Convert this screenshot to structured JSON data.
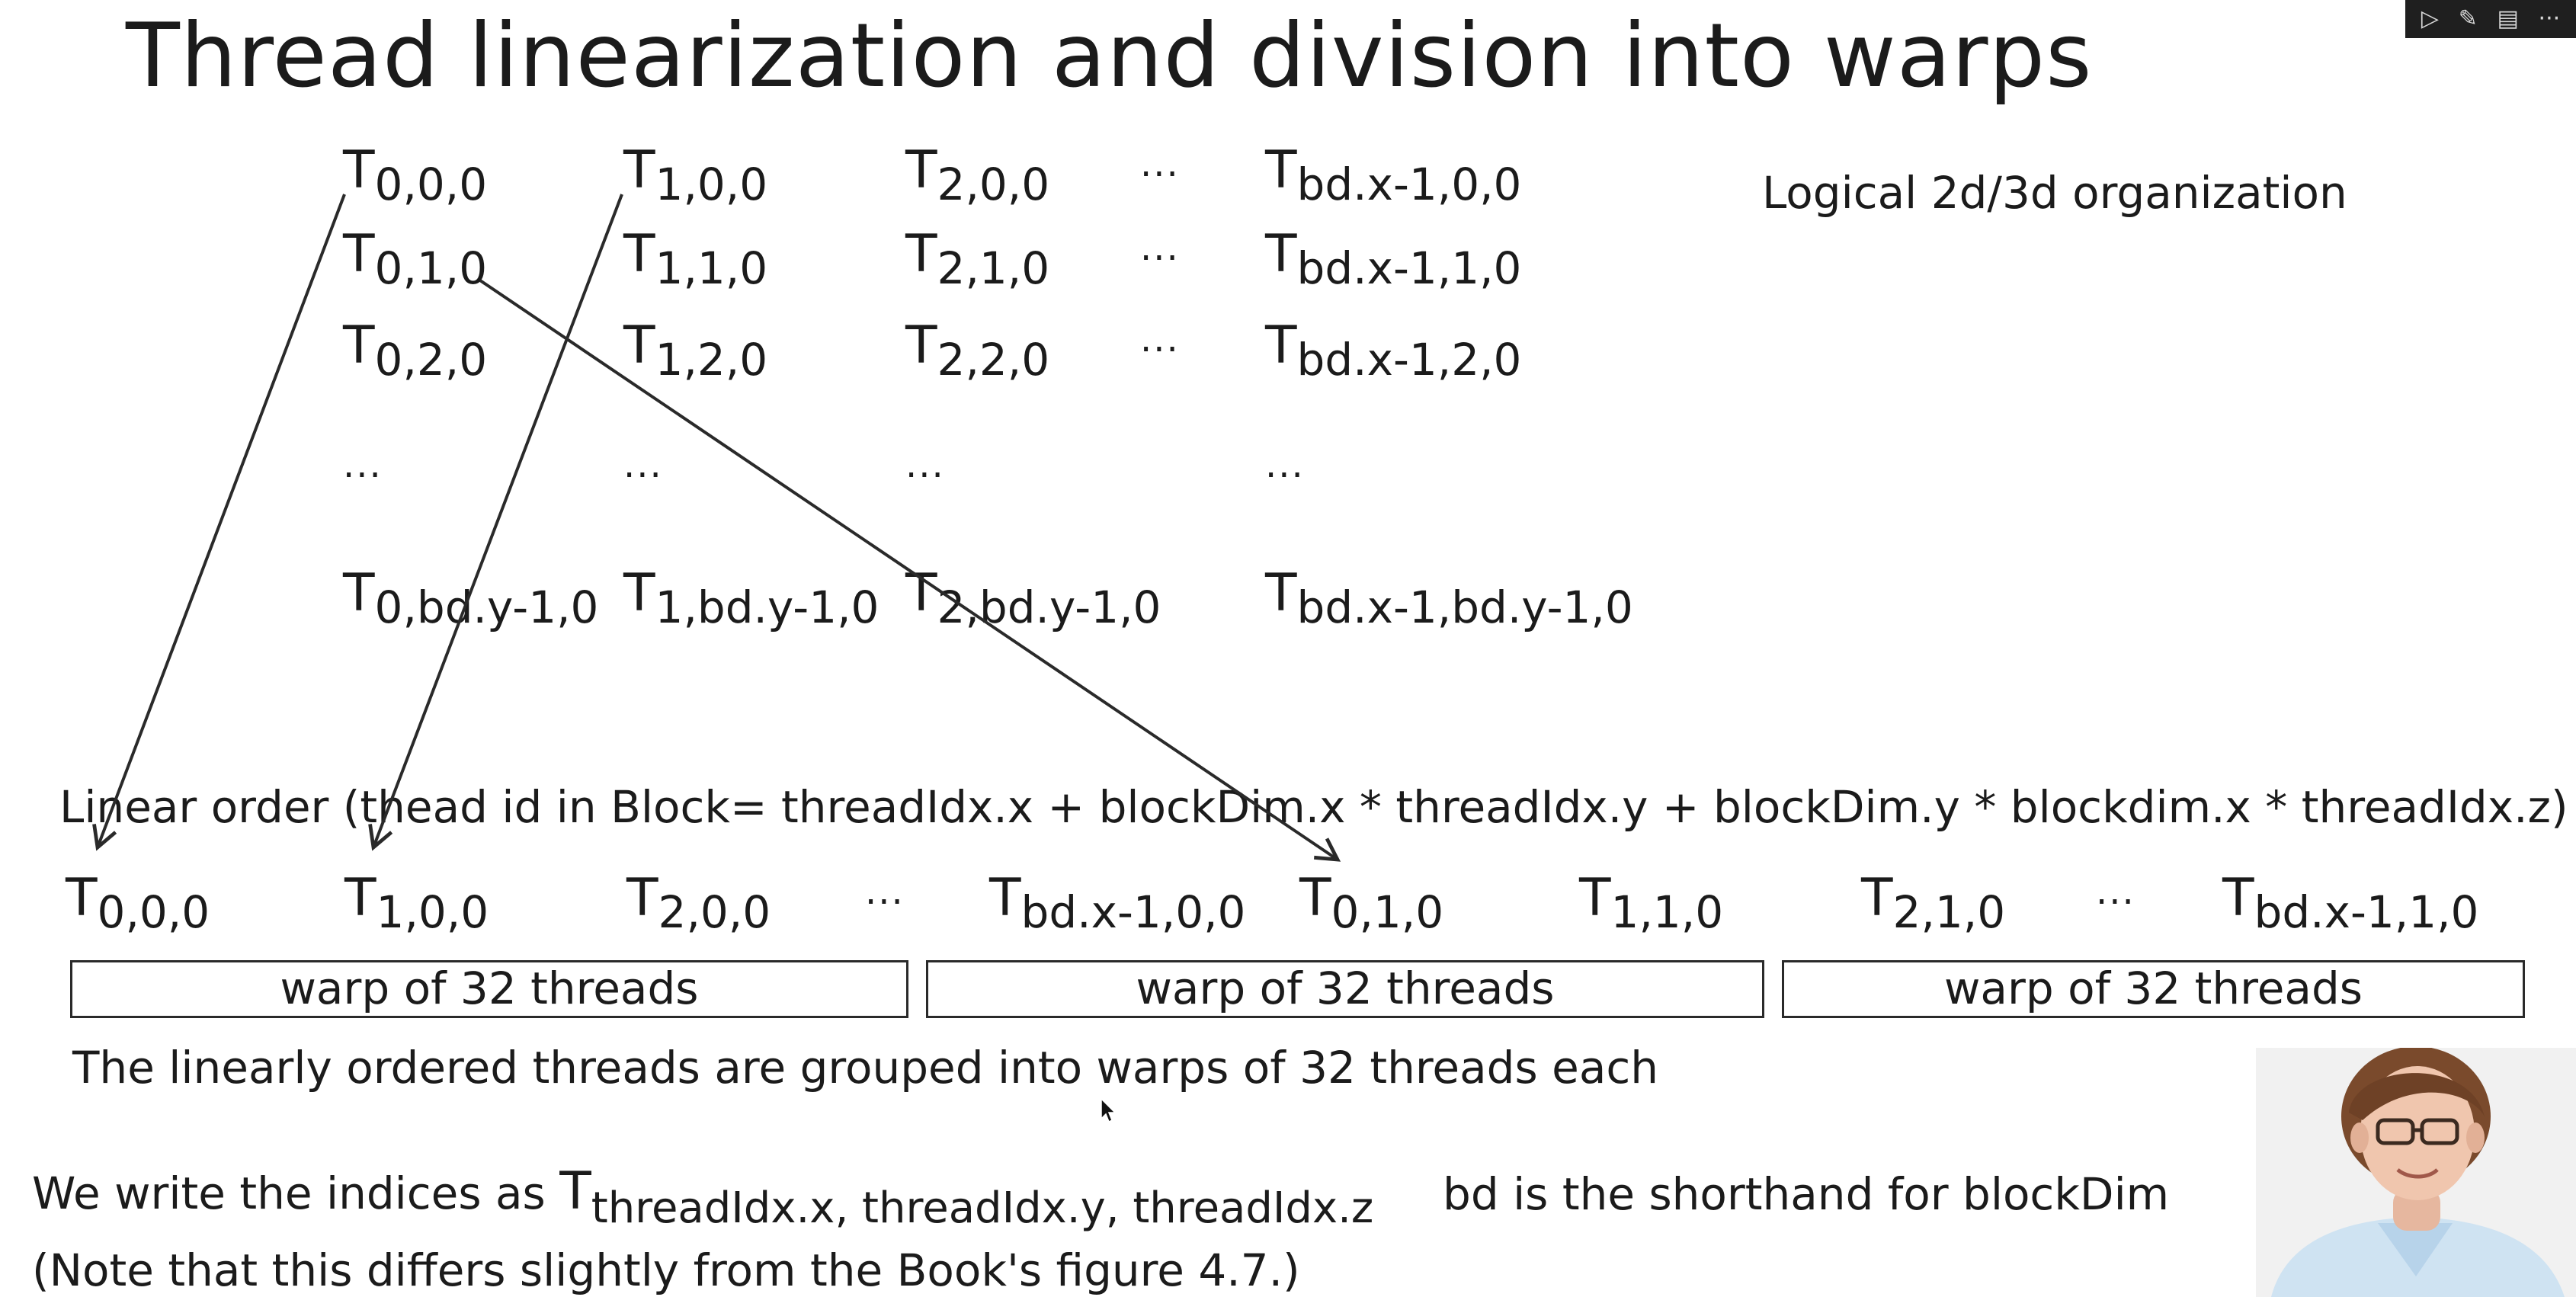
{
  "slide": {
    "title": "Thread linearization and division into warps",
    "logical_label": "Logical 2d/3d organization",
    "grid": {
      "row0": [
        {
          "base": "T",
          "sub": "0,0,0"
        },
        {
          "base": "T",
          "sub": "1,0,0"
        },
        {
          "base": "T",
          "sub": "2,0,0"
        },
        {
          "base": "T",
          "sub": "bd.x-1,0,0"
        }
      ],
      "row1": [
        {
          "base": "T",
          "sub": "0,1,0"
        },
        {
          "base": "T",
          "sub": "1,1,0"
        },
        {
          "base": "T",
          "sub": "2,1,0"
        },
        {
          "base": "T",
          "sub": "bd.x-1,1,0"
        }
      ],
      "row2": [
        {
          "base": "T",
          "sub": "0,2,0"
        },
        {
          "base": "T",
          "sub": "1,2,0"
        },
        {
          "base": "T",
          "sub": "2,2,0"
        },
        {
          "base": "T",
          "sub": "bd.x-1,2,0"
        }
      ],
      "rowlast": [
        {
          "base": "T",
          "sub": "0,bd.y-1,0"
        },
        {
          "base": "T",
          "sub": "1,bd.y-1,0"
        },
        {
          "base": "T",
          "sub": "2,bd.y-1,0"
        },
        {
          "base": "T",
          "sub": "bd.x-1,bd.y-1,0"
        }
      ],
      "ellipsis": "···"
    },
    "linear_label": "Linear order (thead id in Block= threadIdx.x + blockDim.x * threadIdx.y + blockDim.y * blockdim.x * threadIdx.z)",
    "linear": [
      {
        "base": "T",
        "sub": "0,0,0"
      },
      {
        "base": "T",
        "sub": "1,0,0"
      },
      {
        "base": "T",
        "sub": "2,0,0"
      },
      {
        "base": "T",
        "sub": "bd.x-1,0,0"
      },
      {
        "base": "T",
        "sub": "0,1,0"
      },
      {
        "base": "T",
        "sub": "1,1,0"
      },
      {
        "base": "T",
        "sub": "2,1,0"
      },
      {
        "base": "T",
        "sub": "bd.x-1,1,0"
      }
    ],
    "warps": [
      "warp of 32 threads",
      "warp of 32 threads",
      "warp of 32 threads"
    ],
    "grouping_note": "The linearly ordered threads are grouped into warps of 32 threads each",
    "indices_prefix": "We write the indices as",
    "indices_base": "T",
    "indices_sub": "threadIdx.x, threadIdx.y, threadIdx.z",
    "shorthand": "bd is the shorthand for blockDim",
    "book_note": "(Note that this differs slightly from the Book's figure 4.7.)"
  },
  "toolbar": {
    "icons": [
      "play-icon",
      "pen-icon",
      "layout-icon",
      "more-icon"
    ]
  },
  "colors": {
    "text": "#1b1b1b",
    "background": "#ffffff",
    "toolbar": "#1f1f1f"
  }
}
